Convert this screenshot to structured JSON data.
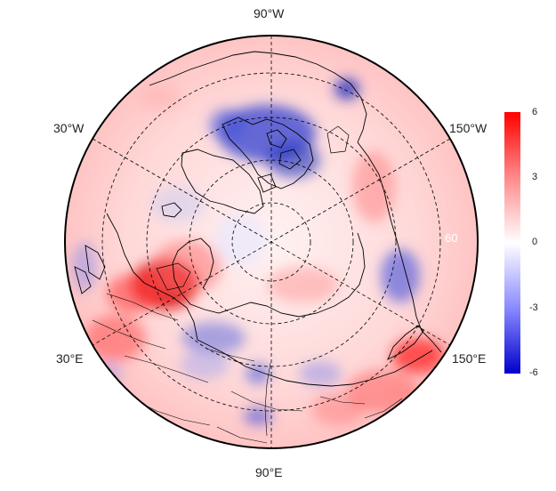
{
  "map": {
    "projection": "north-polar-stereographic",
    "longitude_labels": {
      "top": "90°W",
      "upper_left": "30°W",
      "upper_right": "150°W",
      "lower_left": "30°E",
      "lower_right": "150°E",
      "bottom": "90°E"
    },
    "latitude_label_faint": "60",
    "gridlines": "dashed",
    "coastlines": "black"
  },
  "colorbar": {
    "ticks": [
      "6",
      "3",
      "0",
      "-3",
      "-6"
    ],
    "range": [
      -6,
      6
    ],
    "colors": {
      "max": "#ff0000",
      "mid": "#ffffff",
      "min": "#0000cc"
    }
  },
  "colors": {
    "positive": "#ff0000",
    "neutral": "#ffffff",
    "negative": "#0000dd",
    "grid": "#000000",
    "rim": "#000000"
  }
}
